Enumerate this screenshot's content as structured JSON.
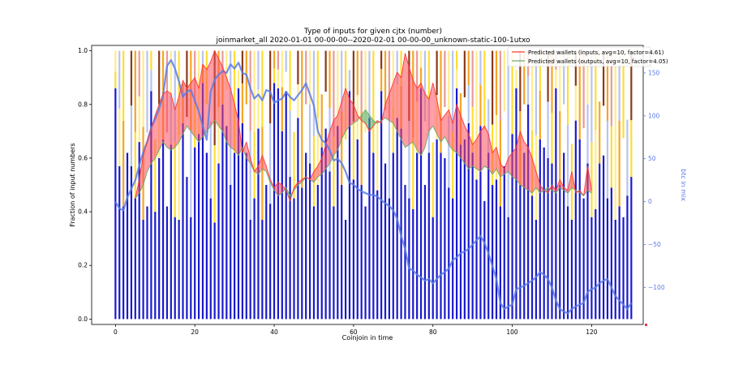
{
  "chart_data": {
    "type": "bar",
    "title": "Type of inputs for given cjtx (number)",
    "subtitle": "joinmarket_all 2020-01-01 00-00-00--2020-02-01 00-00-00_unknown-static-100-1utxo",
    "xlabel": "Coinjoin in time",
    "ylabel": "Fraction of input numbers",
    "y2label": "btc in mix",
    "xlim": [
      -6,
      133
    ],
    "ylim": [
      -0.02,
      1.02
    ],
    "y2lim": [
      -143,
      182
    ],
    "xticks": [
      0,
      20,
      40,
      60,
      80,
      100,
      120
    ],
    "yticks": [
      0.0,
      0.2,
      0.4,
      0.6,
      0.8,
      1.0
    ],
    "y2ticks": [
      -100,
      -50,
      0,
      50,
      100,
      150
    ],
    "grid": false,
    "legend_position": "top-right",
    "bars": {
      "n": 131,
      "blue_heights": [
        0.86,
        0.57,
        0.42,
        0.62,
        0.57,
        0.45,
        0.66,
        0.37,
        0.42,
        0.85,
        0.4,
        0.6,
        0.67,
        0.42,
        0.65,
        0.38,
        0.37,
        0.73,
        0.53,
        0.38,
        0.64,
        0.69,
        0.88,
        0.62,
        0.45,
        0.36,
        0.58,
        0.8,
        0.72,
        0.5,
        0.62,
        0.86,
        0.73,
        0.62,
        0.37,
        0.45,
        0.71,
        0.37,
        0.5,
        0.43,
        0.88,
        0.86,
        0.7,
        0.85,
        0.53,
        0.45,
        0.75,
        0.49,
        0.62,
        0.58,
        0.42,
        0.5,
        0.64,
        0.71,
        0.55,
        0.42,
        0.72,
        0.5,
        0.37,
        0.85,
        0.52,
        0.67,
        0.5,
        0.42,
        0.75,
        0.62,
        0.48,
        0.85,
        0.58,
        0.45,
        0.62,
        0.75,
        0.71,
        0.5,
        0.45,
        0.41,
        0.62,
        0.86,
        0.5,
        0.62,
        0.38,
        0.67,
        0.62,
        0.6,
        0.49,
        0.45,
        0.86,
        0.65,
        0.67,
        0.73,
        0.62,
        0.52,
        0.72,
        0.44,
        0.62,
        0.5,
        0.52,
        0.42,
        0.57,
        0.38,
        0.69,
        0.86,
        0.5,
        0.62,
        0.8,
        0.46,
        0.37,
        0.67,
        0.64,
        0.6,
        0.58,
        0.86,
        0.5,
        0.62,
        0.42,
        0.37,
        0.74,
        0.67,
        0.45,
        0.58,
        0.38,
        0.41,
        0.58,
        0.61,
        0.45,
        0.49,
        0.37,
        0.42,
        0.38,
        0.46,
        0.53
      ]
    },
    "series": [
      {
        "name": "Predicted wallets (inputs, avg=10, factor=4.61)",
        "color": "#ff3333",
        "x0": 5,
        "values": [
          0.45,
          0.52,
          0.61,
          0.66,
          0.71,
          0.76,
          0.8,
          0.84,
          0.85,
          0.84,
          0.78,
          0.83,
          0.89,
          0.86,
          0.88,
          0.9,
          0.86,
          0.95,
          0.93,
          0.96,
          1.0,
          0.97,
          0.94,
          0.9,
          0.86,
          0.8,
          0.74,
          0.62,
          0.66,
          0.6,
          0.55,
          0.57,
          0.61,
          0.57,
          0.52,
          0.49,
          0.51,
          0.5,
          0.48,
          0.44,
          0.49,
          0.51,
          0.52,
          0.53,
          0.52,
          0.55,
          0.57,
          0.6,
          0.65,
          0.7,
          0.74,
          0.76,
          0.81,
          0.86,
          0.82,
          0.8,
          0.76,
          0.74,
          0.73,
          0.7,
          0.72,
          0.74,
          0.73,
          0.8,
          0.84,
          0.88,
          0.92,
          0.9,
          0.99,
          0.94,
          0.89,
          0.86,
          0.88,
          0.84,
          0.82,
          0.88,
          0.82,
          0.74,
          0.76,
          0.78,
          0.73,
          0.8,
          0.76,
          0.72,
          0.69,
          0.65,
          0.67,
          0.7,
          0.72,
          0.69,
          0.62,
          0.64,
          0.58,
          0.56,
          0.6,
          0.62,
          0.64,
          0.7,
          0.66,
          0.64,
          0.6,
          0.55,
          0.5,
          0.48,
          0.47,
          0.5,
          0.48,
          0.52,
          0.49,
          0.48,
          0.55,
          0.47,
          0.48,
          0.46,
          0.57,
          0.48
        ]
      },
      {
        "name": "Predicted wallets (outputs, avg=10, factor=4.05)",
        "color": "#66aa66",
        "x0": 5,
        "values": [
          0.45,
          0.47,
          0.5,
          0.55,
          0.58,
          0.6,
          0.63,
          0.66,
          0.64,
          0.63,
          0.64,
          0.66,
          0.69,
          0.72,
          0.7,
          0.68,
          0.66,
          0.68,
          0.7,
          0.72,
          0.74,
          0.72,
          0.7,
          0.66,
          0.64,
          0.63,
          0.61,
          0.64,
          0.6,
          0.58,
          0.55,
          0.54,
          0.56,
          0.55,
          0.51,
          0.48,
          0.46,
          0.47,
          0.49,
          0.46,
          0.48,
          0.5,
          0.51,
          0.53,
          0.52,
          0.51,
          0.53,
          0.54,
          0.56,
          0.58,
          0.61,
          0.63,
          0.67,
          0.7,
          0.72,
          0.73,
          0.74,
          0.76,
          0.78,
          0.76,
          0.74,
          0.73,
          0.74,
          0.75,
          0.74,
          0.73,
          0.7,
          0.67,
          0.64,
          0.65,
          0.66,
          0.63,
          0.61,
          0.64,
          0.7,
          0.72,
          0.69,
          0.66,
          0.68,
          0.65,
          0.63,
          0.62,
          0.6,
          0.58,
          0.56,
          0.57,
          0.56,
          0.55,
          0.57,
          0.56,
          0.54,
          0.56,
          0.53,
          0.54,
          0.55,
          0.53,
          0.52,
          0.5,
          0.49,
          0.48,
          0.47,
          0.49,
          0.47,
          0.48,
          0.49,
          0.48,
          0.47,
          0.49,
          0.48,
          0.47,
          0.49,
          0.48,
          0.47,
          0.46,
          0.48,
          0.47
        ]
      },
      {
        "name": "btc in mix",
        "color": "#5b7be6",
        "axis": "y2",
        "x0": 0,
        "values": [
          0,
          -8,
          -10,
          5,
          15,
          25,
          42,
          58,
          70,
          86,
          96,
          108,
          124,
          158,
          165,
          155,
          140,
          122,
          128,
          130,
          118,
          105,
          88,
          72,
          128,
          142,
          148,
          152,
          150,
          160,
          155,
          162,
          150,
          148,
          132,
          120,
          125,
          118,
          130,
          128,
          115,
          118,
          120,
          128,
          122,
          118,
          124,
          130,
          138,
          125,
          112,
          82,
          72,
          68,
          60,
          48,
          50,
          45,
          35,
          22,
          20,
          15,
          12,
          10,
          8,
          8,
          6,
          2,
          -2,
          -5,
          -10,
          -20,
          -40,
          -55,
          -78,
          -80,
          -85,
          -88,
          -92,
          -90,
          -95,
          -90,
          -85,
          -82,
          -78,
          -68,
          -65,
          -60,
          -58,
          -55,
          -50,
          -45,
          -40,
          -48,
          -60,
          -75,
          -90,
          -118,
          -125,
          -122,
          -120,
          -102,
          -100,
          -98,
          -95,
          -92,
          -88,
          -82,
          -85,
          -90,
          -100,
          -115,
          -125,
          -128,
          -130,
          -125,
          -122,
          -120,
          -118,
          -105,
          -102,
          -100,
          -95,
          -92,
          -90,
          -100,
          -110,
          -115,
          -120,
          -125,
          -118
        ]
      }
    ]
  }
}
